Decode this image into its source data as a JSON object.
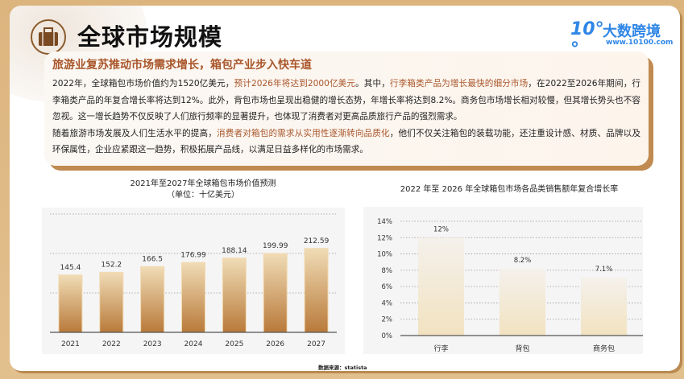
{
  "header": {
    "title": "全球市场规模",
    "icon": "suitcase-icon",
    "logo_name": "大数跨境",
    "logo_mark": "10°°",
    "logo_url": "www.10100.com"
  },
  "summary": {
    "heading": "旅游业复苏推动市场需求增长，箱包产业步入快车道",
    "paragraphs": [
      [
        {
          "t": "2022年，全球箱包市场价值约为1520亿美元，"
        },
        {
          "t": "预计2026年将达到2000亿美元",
          "hl": true
        },
        {
          "t": "。其中，"
        },
        {
          "t": "行李箱类产品为增长最快的细分市场",
          "hl": true
        },
        {
          "t": "，在2022至2026年期间，行李箱类产品的年复合增长率将达到12%。此外，背包市场也呈现出稳健的增长态势，年增长率将达到8.2%。商务包市场增长相对较慢，但其增长势头也不容忽视。这一增长趋势不仅反映了人们旅行频率的显著提升，也体现了消费者对更高品质旅行产品的强烈需求。"
        }
      ],
      [
        {
          "t": "随着旅游市场发展及人们生活水平的提高，"
        },
        {
          "t": "消费者对箱包的需求从实用性逐渐转向品质化",
          "hl": true
        },
        {
          "t": "，他们不仅关注箱包的装载功能，还注重设计感、材质、品牌以及环保属性，企业应紧跟这一趋势，积极拓展产品线，以满足日益多样化的市场需求。"
        }
      ]
    ]
  },
  "source": "数据来源：statista",
  "colors": {
    "accent": "#a9562a",
    "bar_dark": "#b97a3a",
    "bar_light": "#f0dcb6",
    "brand": "#2f86e6"
  },
  "chart_data": [
    {
      "type": "bar",
      "title": "2021年至2027年全球箱包市场价值预测",
      "subtitle": "（单位：十亿美元）",
      "categories": [
        "2021",
        "2022",
        "2023",
        "2024",
        "2025",
        "2026",
        "2027"
      ],
      "values": [
        145.4,
        152.2,
        166.5,
        176.99,
        188.14,
        199.99,
        212.59
      ],
      "labels": [
        "145.4",
        "152.2",
        "166.5",
        "176.99",
        "188.14",
        "199.99",
        "212.59"
      ],
      "ylim": [
        0,
        300
      ],
      "grid": true,
      "yticks_shown": false
    },
    {
      "type": "bar",
      "title": "2022 年至 2026 年全球箱包市场各品类销售额年复合增长率",
      "categories": [
        "行李",
        "背包",
        "商务包"
      ],
      "values": [
        12,
        8.2,
        7.1
      ],
      "labels": [
        "12%",
        "8.2%",
        "7.1%"
      ],
      "ylim": [
        0,
        14
      ],
      "yticks": [
        "0%",
        "2%",
        "4%",
        "6%",
        "8%",
        "10%",
        "12%",
        "14%"
      ],
      "grid": true
    }
  ]
}
